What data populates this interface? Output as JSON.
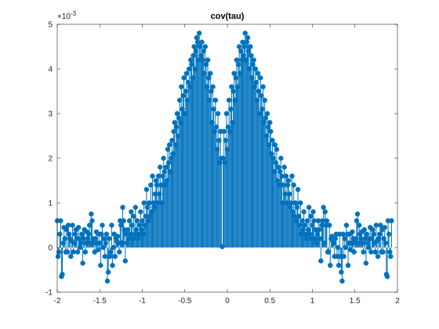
{
  "chart_data": {
    "type": "stem",
    "title": "cov(tau)",
    "xlabel": "",
    "ylabel": "",
    "xlim": [
      -2,
      2
    ],
    "ylim": [
      -1,
      5
    ],
    "x_ticks": [
      "-2",
      "-1.5",
      "-1",
      "-0.5",
      "0",
      "0.5",
      "1",
      "1.5",
      "2"
    ],
    "y_ticks": [
      "-1",
      "0",
      "1",
      "2",
      "3",
      "4",
      "5"
    ],
    "y_multiplier": {
      "base": "×10",
      "exponent": "-3"
    },
    "grid": false,
    "legend": "none",
    "series_color": "#0072BD",
    "x_step": 0.01,
    "series": [
      {
        "values": [
          0.6,
          -0.2,
          -0.1,
          0.3,
          0.6,
          -0.65,
          -0.6,
          0.1,
          0.45,
          0.2,
          -0.1,
          0.4,
          -0.1,
          0.5,
          0.3,
          0.2,
          -0.2,
          0.15,
          0.5,
          -0.1,
          0.1,
          0.3,
          0.4,
          0.2,
          -0.1,
          0.45,
          0.2,
          0.0,
          0.1,
          0.3,
          -0.35,
          0.2,
          0.4,
          -0.1,
          0.1,
          0.35,
          0.2,
          0.3,
          0.5,
          0.1,
          0.75,
          0.6,
          0.2,
          0.1,
          -0.1,
          0.2,
          0.35,
          0.1,
          -0.05,
          0.3,
          0.1,
          -0.4,
          0.3,
          0.5,
          0.0,
          0.2,
          -0.2,
          0.1,
          0.3,
          -0.75,
          -0.55,
          0.2,
          -0.2,
          -0.1,
          0.5,
          -0.4,
          0.0,
          0.3,
          -0.2,
          0.2,
          0.15,
          0.25,
          0.1,
          -0.1,
          0.6,
          0.5,
          0.1,
          0.9,
          0.6,
          0.4,
          -0.3,
          0.3,
          0.1,
          0.4,
          0.2,
          0.6,
          0.3,
          0.8,
          0.5,
          0.2,
          0.7,
          0.3,
          0.9,
          0.4,
          0.6,
          0.2,
          0.3,
          0.5,
          0.8,
          0.4,
          0.6,
          0.3,
          1.0,
          0.5,
          0.7,
          1.3,
          0.9,
          0.6,
          1.0,
          0.7,
          1.4,
          0.8,
          1.6,
          1.0,
          0.9,
          1.2,
          1.5,
          1.4,
          1.0,
          1.6,
          1.2,
          1.8,
          1.4,
          1.0,
          1.6,
          2.0,
          1.7,
          1.4,
          1.8,
          1.5,
          2.2,
          1.9,
          2.3,
          1.7,
          2.0,
          2.4,
          2.1,
          2.6,
          2.8,
          2.3,
          2.7,
          3.0,
          2.5,
          2.9,
          3.3,
          2.8,
          3.6,
          3.1,
          3.4,
          3.8,
          3.0,
          3.5,
          3.9,
          3.3,
          3.7,
          4.0,
          3.6,
          4.2,
          4.1,
          3.8,
          4.3,
          4.5,
          4.0,
          4.4,
          4.7,
          4.6,
          4.2,
          4.8,
          4.5,
          4.3,
          4.6,
          4.2,
          4.4,
          3.9,
          4.5,
          4.1,
          3.6,
          4.2,
          3.8,
          3.3,
          3.9,
          3.5,
          2.8,
          3.6,
          3.1,
          2.6,
          3.3,
          2.7,
          2.2,
          3.0,
          2.4,
          1.9,
          2.6,
          2.0,
          0.02,
          2.0,
          2.6,
          1.9,
          2.4,
          3.0,
          2.2,
          2.7,
          3.3,
          2.6,
          3.1,
          3.6,
          2.8,
          3.5,
          3.9,
          3.3,
          3.8,
          4.2,
          3.6,
          4.1,
          4.5,
          3.9,
          4.4,
          4.2,
          4.6,
          4.3,
          4.5,
          4.8,
          4.2,
          4.6,
          4.7,
          4.4,
          4.0,
          4.5,
          4.3,
          3.8,
          4.1,
          4.2,
          3.6,
          4.0,
          3.7,
          3.3,
          3.9,
          3.5,
          3.0,
          3.8,
          3.4,
          3.1,
          3.6,
          2.8,
          3.3,
          2.9,
          2.5,
          3.0,
          2.7,
          2.3,
          2.8,
          2.6,
          2.1,
          2.4,
          2.0,
          1.7,
          2.3,
          1.9,
          2.2,
          1.5,
          1.8,
          1.4,
          1.7,
          2.0,
          1.6,
          1.0,
          1.4,
          1.8,
          1.2,
          1.6,
          1.0,
          1.4,
          1.5,
          1.2,
          0.9,
          1.0,
          1.6,
          0.8,
          1.4,
          0.7,
          1.0,
          0.6,
          0.9,
          1.3,
          0.7,
          0.5,
          1.0,
          0.3,
          0.6,
          0.4,
          0.8,
          0.5,
          0.3,
          0.2,
          0.6,
          0.4,
          0.9,
          0.3,
          0.7,
          0.2,
          0.5,
          0.8,
          0.6,
          0.2,
          0.4,
          0.1,
          0.3,
          0.6,
          0.4,
          0.2,
          -0.3,
          0.5,
          0.6,
          0.9,
          0.1,
          0.8,
          0.5,
          0.6,
          -0.1,
          -0.1,
          0.5,
          -0.4,
          0.2,
          0.25,
          0.15,
          0.1,
          -0.2,
          0.2,
          0.3,
          -0.2,
          0.0,
          -0.4,
          0.3,
          -0.2,
          -0.55,
          -0.75,
          0.3,
          -0.2,
          0.2,
          0.0,
          0.5,
          0.3,
          -0.4,
          0.1,
          0.3,
          -0.05,
          0.1,
          0.35,
          0.2,
          -0.1,
          0.1,
          0.2,
          0.6,
          0.75,
          0.1,
          0.5,
          0.3,
          0.2,
          0.35,
          0.1,
          -0.1,
          0.4,
          0.2,
          -0.35,
          0.3,
          0.1,
          0.0,
          0.2,
          0.45,
          -0.1,
          0.2,
          0.4,
          0.3,
          0.1,
          -0.1,
          0.5,
          0.15,
          -0.2,
          0.2,
          0.3,
          0.5,
          -0.1,
          0.4,
          -0.1,
          0.2,
          0.45,
          0.1,
          -0.6,
          -0.65,
          0.6,
          0.3,
          -0.1,
          -0.2,
          0.6
        ]
      }
    ]
  }
}
